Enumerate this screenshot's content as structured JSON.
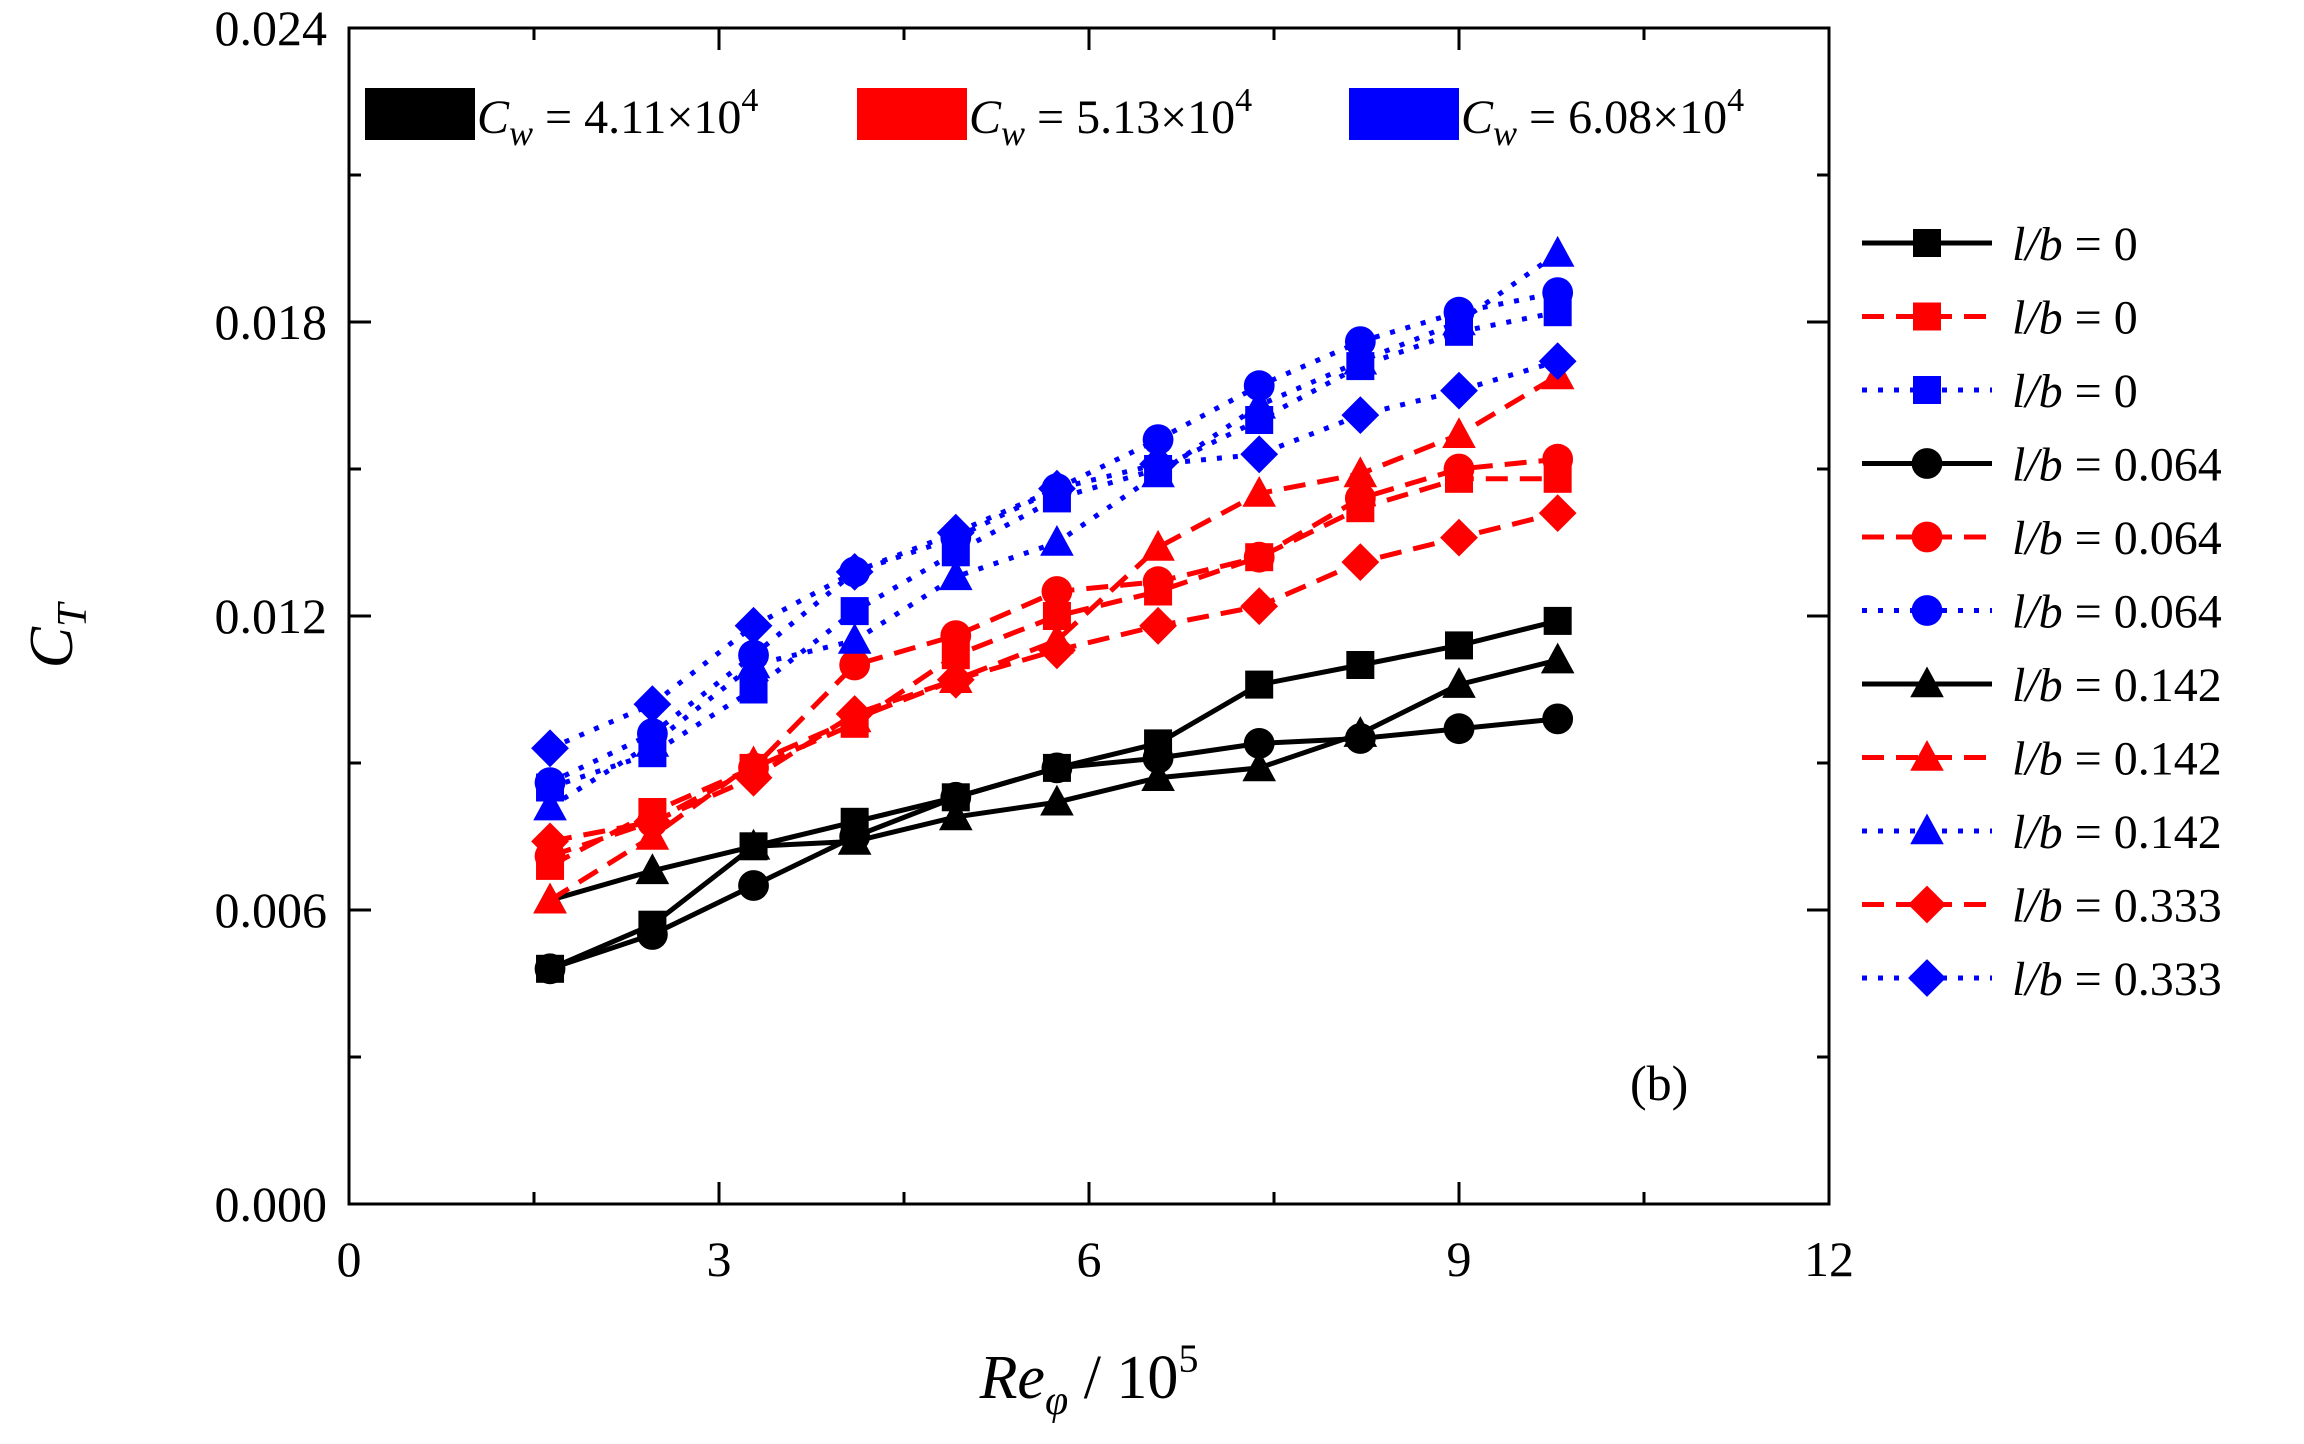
{
  "chart_data": {
    "type": "line",
    "title": "",
    "panel_label": "(b)",
    "xlabel": {
      "main": "Re",
      "sub": "φ",
      "rest": " / 10",
      "sup": "5"
    },
    "ylabel": {
      "main": "C",
      "sub": "T"
    },
    "xlim": [
      0,
      12
    ],
    "ylim": [
      0,
      0.024
    ],
    "xticks": [
      "0",
      "3",
      "6",
      "9",
      "12"
    ],
    "yticks": [
      "0.000",
      "0.006",
      "0.012",
      "0.018",
      "0.024"
    ],
    "x": [
      1.63,
      2.46,
      3.28,
      4.1,
      4.92,
      5.74,
      6.56,
      7.38,
      8.2,
      9.0,
      9.8
    ],
    "color_legend": [
      {
        "color": "#000000",
        "prefix": "C",
        "sub": "w",
        "text": " = 4.11×10",
        "sup": "4"
      },
      {
        "color": "#ff0000",
        "prefix": "C",
        "sub": "w",
        "text": " = 5.13×10",
        "sup": "4"
      },
      {
        "color": "#0000ff",
        "prefix": "C",
        "sub": "w",
        "text": " = 6.08×10",
        "sup": "4"
      }
    ],
    "series": [
      {
        "name": "l/b = 0",
        "lb": "0",
        "color": "#000000",
        "dash": "solid",
        "marker": "square",
        "values": [
          0.0048,
          0.0057,
          0.0073,
          0.0078,
          0.0083,
          0.0089,
          0.0094,
          0.0106,
          0.011,
          0.0114,
          0.0119
        ]
      },
      {
        "name": "l/b = 0",
        "lb": "0",
        "color": "#ff0000",
        "dash": "dash",
        "marker": "square",
        "values": [
          0.0069,
          0.008,
          0.0089,
          0.0098,
          0.0112,
          0.012,
          0.0125,
          0.0132,
          0.0142,
          0.0148,
          0.0148
        ]
      },
      {
        "name": "l/b = 0",
        "lb": "0",
        "color": "#0000ff",
        "dash": "dot",
        "marker": "square",
        "values": [
          0.0085,
          0.0092,
          0.0105,
          0.0121,
          0.0133,
          0.0144,
          0.015,
          0.016,
          0.0171,
          0.0178,
          0.0182
        ]
      },
      {
        "name": "l/b = 0.064",
        "lb": "0.064",
        "color": "#000000",
        "dash": "solid",
        "marker": "circle",
        "values": [
          0.0048,
          0.0055,
          0.0065,
          0.0075,
          0.0083,
          0.0089,
          0.0091,
          0.0094,
          0.0095,
          0.0097,
          0.0099
        ]
      },
      {
        "name": "l/b = 0.064",
        "lb": "0.064",
        "color": "#ff0000",
        "dash": "dash",
        "marker": "circle",
        "values": [
          0.0071,
          0.0078,
          0.0089,
          0.011,
          0.0116,
          0.0125,
          0.0127,
          0.0132,
          0.0144,
          0.015,
          0.0152
        ]
      },
      {
        "name": "l/b = 0.064",
        "lb": "0.064",
        "color": "#0000ff",
        "dash": "dot",
        "marker": "circle",
        "values": [
          0.0086,
          0.0096,
          0.0112,
          0.0129,
          0.0136,
          0.0146,
          0.0156,
          0.0167,
          0.0176,
          0.0182,
          0.0186
        ]
      },
      {
        "name": "l/b = 0.142",
        "lb": "0.142",
        "color": "#000000",
        "dash": "solid",
        "marker": "triangle",
        "values": [
          0.0062,
          0.0068,
          0.0073,
          0.0074,
          0.0079,
          0.0082,
          0.0087,
          0.0089,
          0.0096,
          0.0106,
          0.0111
        ]
      },
      {
        "name": "l/b = 0.142",
        "lb": "0.142",
        "color": "#ff0000",
        "dash": "dash",
        "marker": "triangle",
        "values": [
          0.0062,
          0.0075,
          0.009,
          0.0099,
          0.0107,
          0.0115,
          0.0134,
          0.0145,
          0.0149,
          0.0157,
          0.0169
        ]
      },
      {
        "name": "l/b = 0.142",
        "lb": "0.142",
        "color": "#0000ff",
        "dash": "dot",
        "marker": "triangle",
        "values": [
          0.0081,
          0.0094,
          0.011,
          0.0115,
          0.0128,
          0.0135,
          0.0149,
          0.0163,
          0.0172,
          0.018,
          0.0194
        ]
      },
      {
        "name": "l/b = 0.333",
        "lb": "0.333",
        "color": "#ff0000",
        "dash": "dash",
        "marker": "diamond",
        "values": [
          0.0074,
          0.0078,
          0.0087,
          0.01,
          0.0107,
          0.0113,
          0.0118,
          0.0122,
          0.0131,
          0.0136,
          0.0141
        ]
      },
      {
        "name": "l/b = 0.333",
        "lb": "0.333",
        "color": "#0000ff",
        "dash": "dot",
        "marker": "diamond",
        "values": [
          0.0093,
          0.0102,
          0.0118,
          0.0129,
          0.0137,
          0.0146,
          0.0151,
          0.0153,
          0.0161,
          0.0166,
          0.0172
        ]
      }
    ]
  }
}
